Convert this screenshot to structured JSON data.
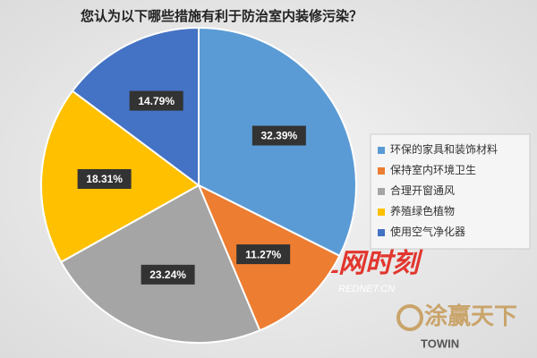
{
  "chart_data": {
    "type": "pie",
    "title": "您认为以下哪些措施有利于防治室内装修污染？",
    "categories": [
      "环保的家具和装饰材料",
      "保持室内环境卫生",
      "合理开窗通风",
      "养殖绿色植物",
      "使用空气净化器"
    ],
    "values": [
      32.39,
      11.27,
      23.24,
      18.31,
      14.79
    ],
    "value_labels": [
      "32.39%",
      "11.27%",
      "23.24%",
      "18.31%",
      "14.79%"
    ],
    "colors": [
      "#5b9bd5",
      "#ed7d31",
      "#a5a5a5",
      "#ffc000",
      "#4472c4"
    ],
    "legend": "right"
  },
  "watermarks": [
    "红网时刻",
    "REDNET.CN",
    "涂赢天下",
    "TOWIN"
  ]
}
